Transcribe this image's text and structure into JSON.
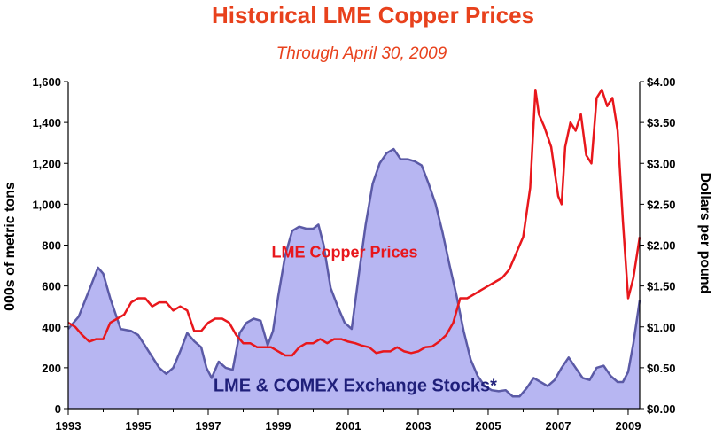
{
  "chart_data": {
    "type": "area",
    "title": "Historical LME Copper Prices",
    "subtitle": "Through April 30, 2009",
    "ylabel_left": "000s of metric tons",
    "ylabel_right": "Dollars per pound",
    "xlim": [
      1993,
      2009.33
    ],
    "ylim_left": [
      0,
      1600
    ],
    "ylim_right": [
      0,
      4.0
    ],
    "x_ticks": [
      "1993",
      "1995",
      "1997",
      "1999",
      "2001",
      "2003",
      "2005",
      "2007",
      "2009"
    ],
    "x_tick_values": [
      1993,
      1995,
      1997,
      1999,
      2001,
      2003,
      2005,
      2007,
      2009
    ],
    "y_ticks_left": [
      "0",
      "200",
      "400",
      "600",
      "800",
      "1,000",
      "1,200",
      "1,400",
      "1,600"
    ],
    "y_tick_values_left": [
      0,
      200,
      400,
      600,
      800,
      1000,
      1200,
      1400,
      1600
    ],
    "y_ticks_right": [
      "$0.00",
      "$0.50",
      "$1.00",
      "$1.50",
      "$2.00",
      "$2.50",
      "$3.00",
      "$3.50",
      "$4.00"
    ],
    "y_tick_values_right": [
      0,
      0.5,
      1.0,
      1.5,
      2.0,
      2.5,
      3.0,
      3.5,
      4.0
    ],
    "grid": false,
    "colors": {
      "title": "#e8411c",
      "price_line": "#e8171c",
      "stocks_fill": "#b7b6f2",
      "stocks_line": "#5b5aa6",
      "stocks_label": "#1f1f7a"
    },
    "series": [
      {
        "name": "LME & COMEX Exchange Stocks*",
        "axis": "left",
        "type": "area",
        "x": [
          1993.0,
          1993.3,
          1993.6,
          1993.85,
          1994.0,
          1994.2,
          1994.5,
          1994.8,
          1995.0,
          1995.3,
          1995.6,
          1995.8,
          1996.0,
          1996.2,
          1996.4,
          1996.6,
          1996.8,
          1996.95,
          1997.1,
          1997.3,
          1997.5,
          1997.7,
          1997.9,
          1998.1,
          1998.3,
          1998.5,
          1998.7,
          1998.85,
          1999.0,
          1999.2,
          1999.4,
          1999.6,
          1999.8,
          2000.0,
          2000.15,
          2000.3,
          2000.5,
          2000.7,
          2000.9,
          2001.1,
          2001.3,
          2001.5,
          2001.7,
          2001.9,
          2002.1,
          2002.3,
          2002.5,
          2002.7,
          2002.9,
          2003.1,
          2003.3,
          2003.5,
          2003.7,
          2003.9,
          2004.1,
          2004.3,
          2004.5,
          2004.7,
          2004.9,
          2005.1,
          2005.3,
          2005.5,
          2005.7,
          2005.9,
          2006.1,
          2006.3,
          2006.5,
          2006.7,
          2006.9,
          2007.1,
          2007.3,
          2007.5,
          2007.7,
          2007.9,
          2008.1,
          2008.3,
          2008.5,
          2008.7,
          2008.85,
          2009.0,
          2009.15,
          2009.33
        ],
        "values": [
          390,
          450,
          580,
          690,
          660,
          540,
          390,
          380,
          360,
          280,
          200,
          170,
          200,
          280,
          370,
          330,
          300,
          200,
          150,
          230,
          200,
          190,
          370,
          420,
          440,
          430,
          310,
          380,
          550,
          750,
          870,
          890,
          880,
          880,
          900,
          800,
          590,
          500,
          420,
          390,
          650,
          900,
          1100,
          1200,
          1250,
          1270,
          1220,
          1220,
          1210,
          1190,
          1100,
          1000,
          860,
          700,
          550,
          380,
          240,
          160,
          110,
          90,
          85,
          90,
          60,
          60,
          100,
          150,
          130,
          110,
          140,
          200,
          250,
          200,
          150,
          140,
          200,
          210,
          160,
          130,
          130,
          180,
          320,
          530
        ]
      },
      {
        "name": "LME Copper Prices",
        "axis": "right",
        "type": "line",
        "x": [
          1993.0,
          1993.2,
          1993.4,
          1993.6,
          1993.8,
          1994.0,
          1994.2,
          1994.4,
          1994.6,
          1994.8,
          1995.0,
          1995.2,
          1995.4,
          1995.6,
          1995.8,
          1996.0,
          1996.2,
          1996.4,
          1996.6,
          1996.8,
          1997.0,
          1997.2,
          1997.4,
          1997.6,
          1997.8,
          1998.0,
          1998.2,
          1998.4,
          1998.6,
          1998.8,
          1999.0,
          1999.2,
          1999.4,
          1999.6,
          1999.8,
          2000.0,
          2000.2,
          2000.4,
          2000.6,
          2000.8,
          2001.0,
          2001.2,
          2001.4,
          2001.6,
          2001.8,
          2002.0,
          2002.2,
          2002.4,
          2002.6,
          2002.8,
          2003.0,
          2003.2,
          2003.4,
          2003.6,
          2003.8,
          2004.0,
          2004.2,
          2004.4,
          2004.6,
          2004.8,
          2005.0,
          2005.2,
          2005.4,
          2005.6,
          2005.8,
          2006.0,
          2006.2,
          2006.35,
          2006.45,
          2006.6,
          2006.8,
          2007.0,
          2007.1,
          2007.2,
          2007.35,
          2007.5,
          2007.65,
          2007.8,
          2007.95,
          2008.1,
          2008.25,
          2008.4,
          2008.55,
          2008.7,
          2008.85,
          2009.0,
          2009.15,
          2009.33
        ],
        "values": [
          1.05,
          1.0,
          0.9,
          0.82,
          0.85,
          0.85,
          1.05,
          1.1,
          1.15,
          1.3,
          1.35,
          1.35,
          1.25,
          1.3,
          1.3,
          1.2,
          1.25,
          1.2,
          0.95,
          0.95,
          1.05,
          1.1,
          1.1,
          1.05,
          0.9,
          0.8,
          0.8,
          0.75,
          0.75,
          0.75,
          0.7,
          0.65,
          0.65,
          0.75,
          0.8,
          0.8,
          0.85,
          0.8,
          0.85,
          0.85,
          0.82,
          0.8,
          0.77,
          0.75,
          0.68,
          0.7,
          0.7,
          0.75,
          0.7,
          0.68,
          0.7,
          0.75,
          0.76,
          0.82,
          0.9,
          1.05,
          1.35,
          1.35,
          1.4,
          1.45,
          1.5,
          1.55,
          1.6,
          1.7,
          1.9,
          2.1,
          2.7,
          3.9,
          3.6,
          3.45,
          3.2,
          2.6,
          2.5,
          3.2,
          3.5,
          3.4,
          3.6,
          3.1,
          3.0,
          3.8,
          3.9,
          3.7,
          3.8,
          3.4,
          2.3,
          1.35,
          1.6,
          2.1
        ]
      }
    ],
    "annotations": [
      {
        "text": "LME Copper Prices",
        "x": 2000.9,
        "y": 1.85
      },
      {
        "text": "LME & COMEX Exchange Stocks*",
        "x": 2001.2,
        "y": 0.21
      }
    ]
  }
}
